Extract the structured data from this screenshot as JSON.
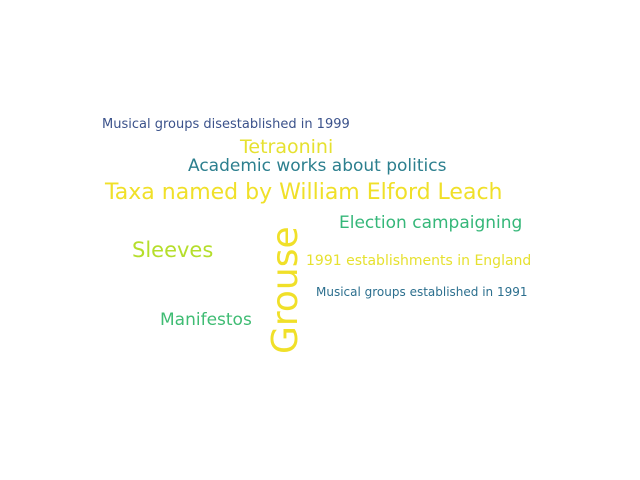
{
  "colors": {
    "background": "#ffffff",
    "dark_blue": "#3b528b",
    "teal": "#2c7f8e",
    "green": "#35b779",
    "lime": "#b5de2b",
    "yellow": "#f0e029"
  },
  "words": [
    {
      "text": "Musical groups disestablished in 1999",
      "color": "#3b528b"
    },
    {
      "text": "Tetraonini",
      "color": "#e6e130"
    },
    {
      "text": "Academic works about politics",
      "color": "#2c7f8e"
    },
    {
      "text": "Taxa named by William Elford Leach",
      "color": "#f0e029"
    },
    {
      "text": "Election campaigning",
      "color": "#35b779"
    },
    {
      "text": "Sleeves",
      "color": "#b5de2b"
    },
    {
      "text": "1991 establishments in England",
      "color": "#e6e130"
    },
    {
      "text": "Musical groups established in 1991",
      "color": "#2c6f8e"
    },
    {
      "text": "Manifestos",
      "color": "#3fbc73"
    },
    {
      "text": "Grouse",
      "color": "#f0e029"
    }
  ]
}
